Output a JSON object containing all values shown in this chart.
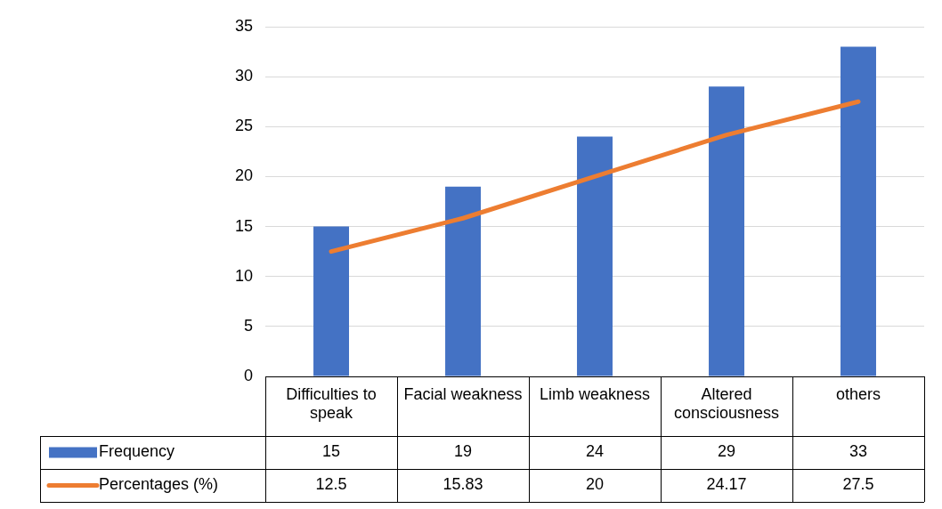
{
  "chart_data": {
    "type": "bar",
    "categories": [
      "Difficulties to speak",
      "Facial weakness",
      "Limb weakness",
      "Altered consciousness",
      "others"
    ],
    "series": [
      {
        "name": "Frequency",
        "color": "#4472c4",
        "values": [
          15,
          19,
          24,
          29,
          33
        ]
      },
      {
        "name": "Percentages (%)",
        "type": "line",
        "color": "#ed7d31",
        "values": [
          12.5,
          15.83,
          20,
          24.17,
          27.5
        ]
      }
    ],
    "ylim": [
      0,
      35
    ],
    "yticks": [
      0,
      5,
      10,
      15,
      20,
      25,
      30,
      35
    ],
    "grid": "y",
    "legend": "bottom",
    "data_labels": true,
    "marker": "none"
  }
}
